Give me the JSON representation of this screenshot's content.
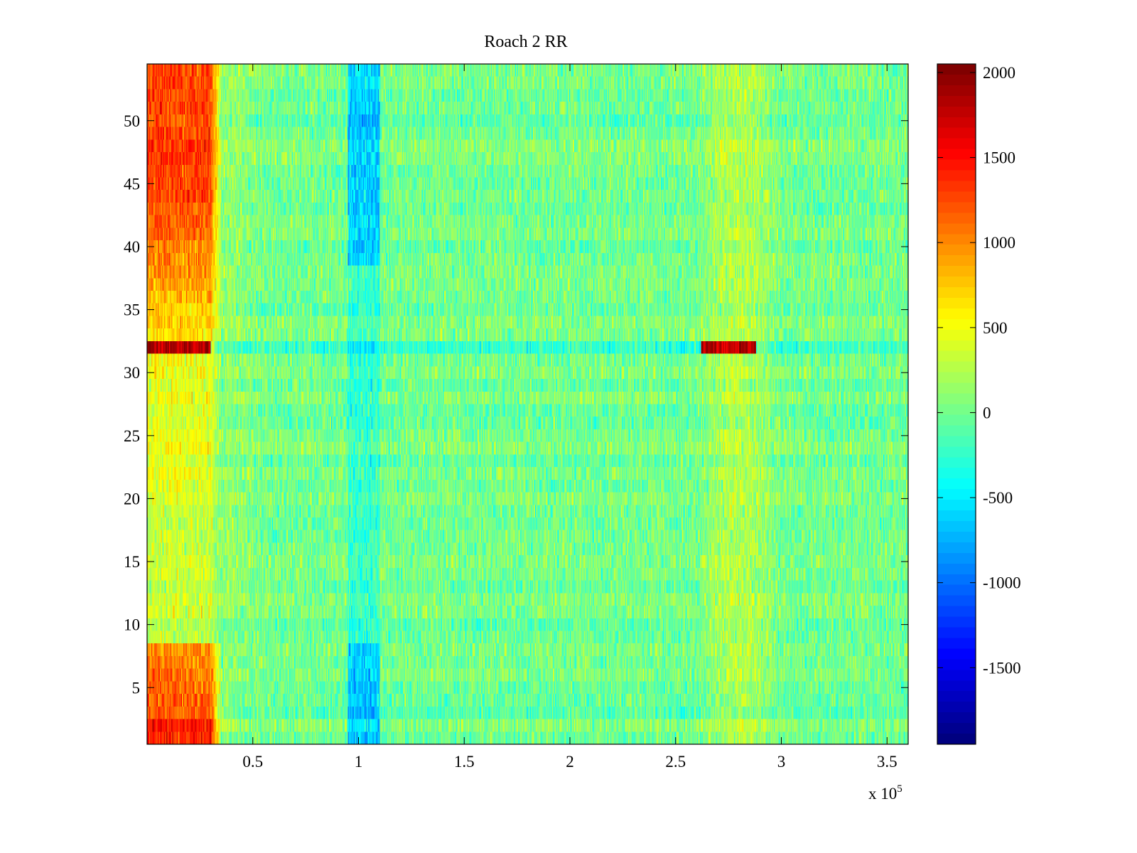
{
  "chart_data": {
    "type": "heatmap",
    "title": "Roach 2 RR",
    "xlabel": "",
    "ylabel": "",
    "x_range": [
      0,
      360000
    ],
    "y_range": [
      0.5,
      54.5
    ],
    "n_rows": 54,
    "x_ticks": [
      50000,
      100000,
      150000,
      200000,
      250000,
      300000,
      350000
    ],
    "x_tick_labels": [
      "0.5",
      "1",
      "1.5",
      "2",
      "2.5",
      "3",
      "3.5"
    ],
    "x_multiplier_label": "x 10",
    "x_multiplier_exponent": "5",
    "y_ticks": [
      5,
      10,
      15,
      20,
      25,
      30,
      35,
      40,
      45,
      50
    ],
    "y_tick_labels": [
      "5",
      "10",
      "15",
      "20",
      "25",
      "30",
      "35",
      "40",
      "45",
      "50"
    ],
    "colorbar": {
      "colormap": "jet",
      "range": [
        -1950,
        2050
      ],
      "ticks": [
        2000,
        1500,
        1000,
        500,
        0,
        -500,
        -1000,
        -1500
      ],
      "tick_labels": [
        "2000",
        "1500",
        "1000",
        "500",
        "0",
        "-500",
        "-1000",
        "-1500"
      ]
    },
    "features": {
      "hot_left_band": {
        "x": [
          0,
          30000
        ],
        "rows_high": [
          30,
          54
        ],
        "rows_hot": [
          1,
          8
        ],
        "level": 1300
      },
      "cold_column": {
        "x": [
          95000,
          110000
        ],
        "level": -700
      },
      "warm_right_band": {
        "x": [
          260000,
          300000
        ],
        "level": 450
      },
      "bright_row": {
        "row": 32,
        "segments": [
          {
            "x": [
              0,
              30000
            ],
            "level": 1850
          },
          {
            "x": [
              262000,
              288000
            ],
            "level": 1850
          }
        ]
      },
      "background_level": 0
    }
  }
}
